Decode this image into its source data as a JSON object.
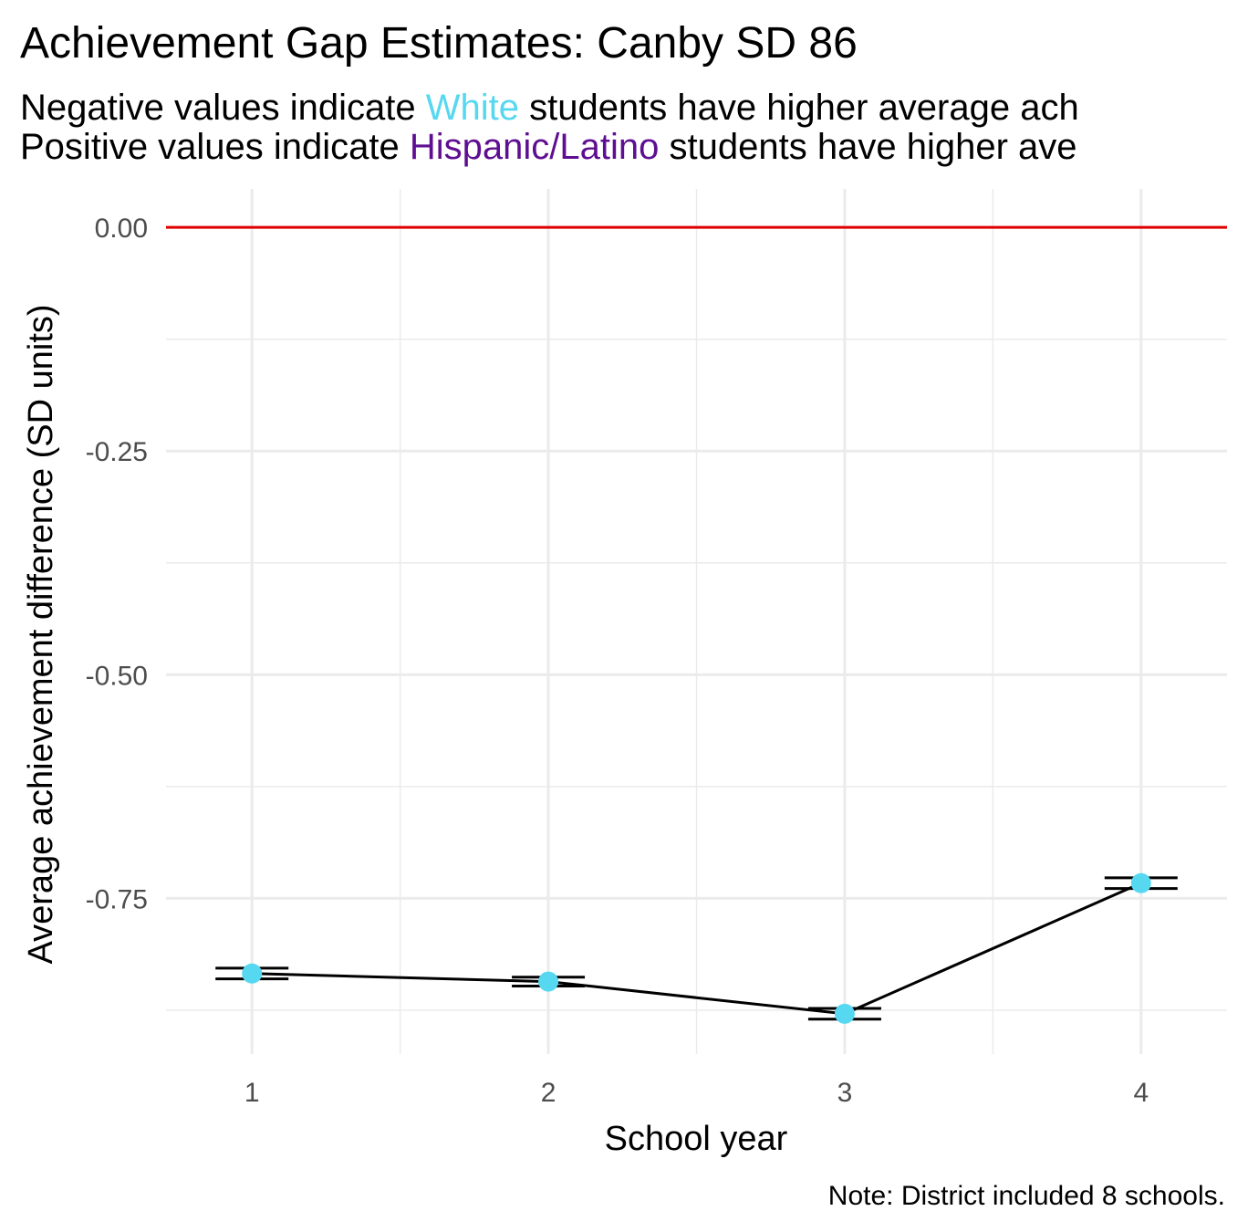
{
  "chart_data": {
    "type": "line",
    "title": "Achievement Gap Estimates: Canby SD 86",
    "subtitle_lines": [
      [
        {
          "text": "Negative values indicate "
        },
        {
          "text": "White",
          "color": "#56d8f0"
        },
        {
          "text": " students have higher average ach"
        }
      ],
      [
        {
          "text": "Positive values indicate "
        },
        {
          "text": "Hispanic/Latino",
          "color": "#5e0f91"
        },
        {
          "text": " students have higher ave"
        }
      ]
    ],
    "x_label": "School year",
    "y_label": "Average achievement difference (SD units)",
    "caption": "Note: District included 8 schools.",
    "x": [
      1,
      2,
      3,
      4
    ],
    "values": [
      -0.834,
      -0.843,
      -0.879,
      -0.733
    ],
    "errors": [
      0.006,
      0.005,
      0.006,
      0.006
    ],
    "line_color": "#000000",
    "point_color": "#56d8f0",
    "reference_line": {
      "value": 0,
      "color": "#e00000"
    },
    "xlim": [
      0.71,
      4.29
    ],
    "ylim": [
      -0.924,
      0.043
    ],
    "xticks": [
      1,
      2,
      3,
      4
    ],
    "yticks": [
      {
        "value": 0,
        "label": "0.00"
      },
      {
        "value": -0.25,
        "label": "-0.25"
      },
      {
        "value": -0.5,
        "label": "-0.50"
      },
      {
        "value": -0.75,
        "label": "-0.75"
      }
    ],
    "minor_xticks": [
      1.5,
      2.5,
      3.5
    ],
    "minor_yticks": [
      -0.125,
      -0.375,
      -0.625,
      -0.875
    ],
    "grid": true
  }
}
